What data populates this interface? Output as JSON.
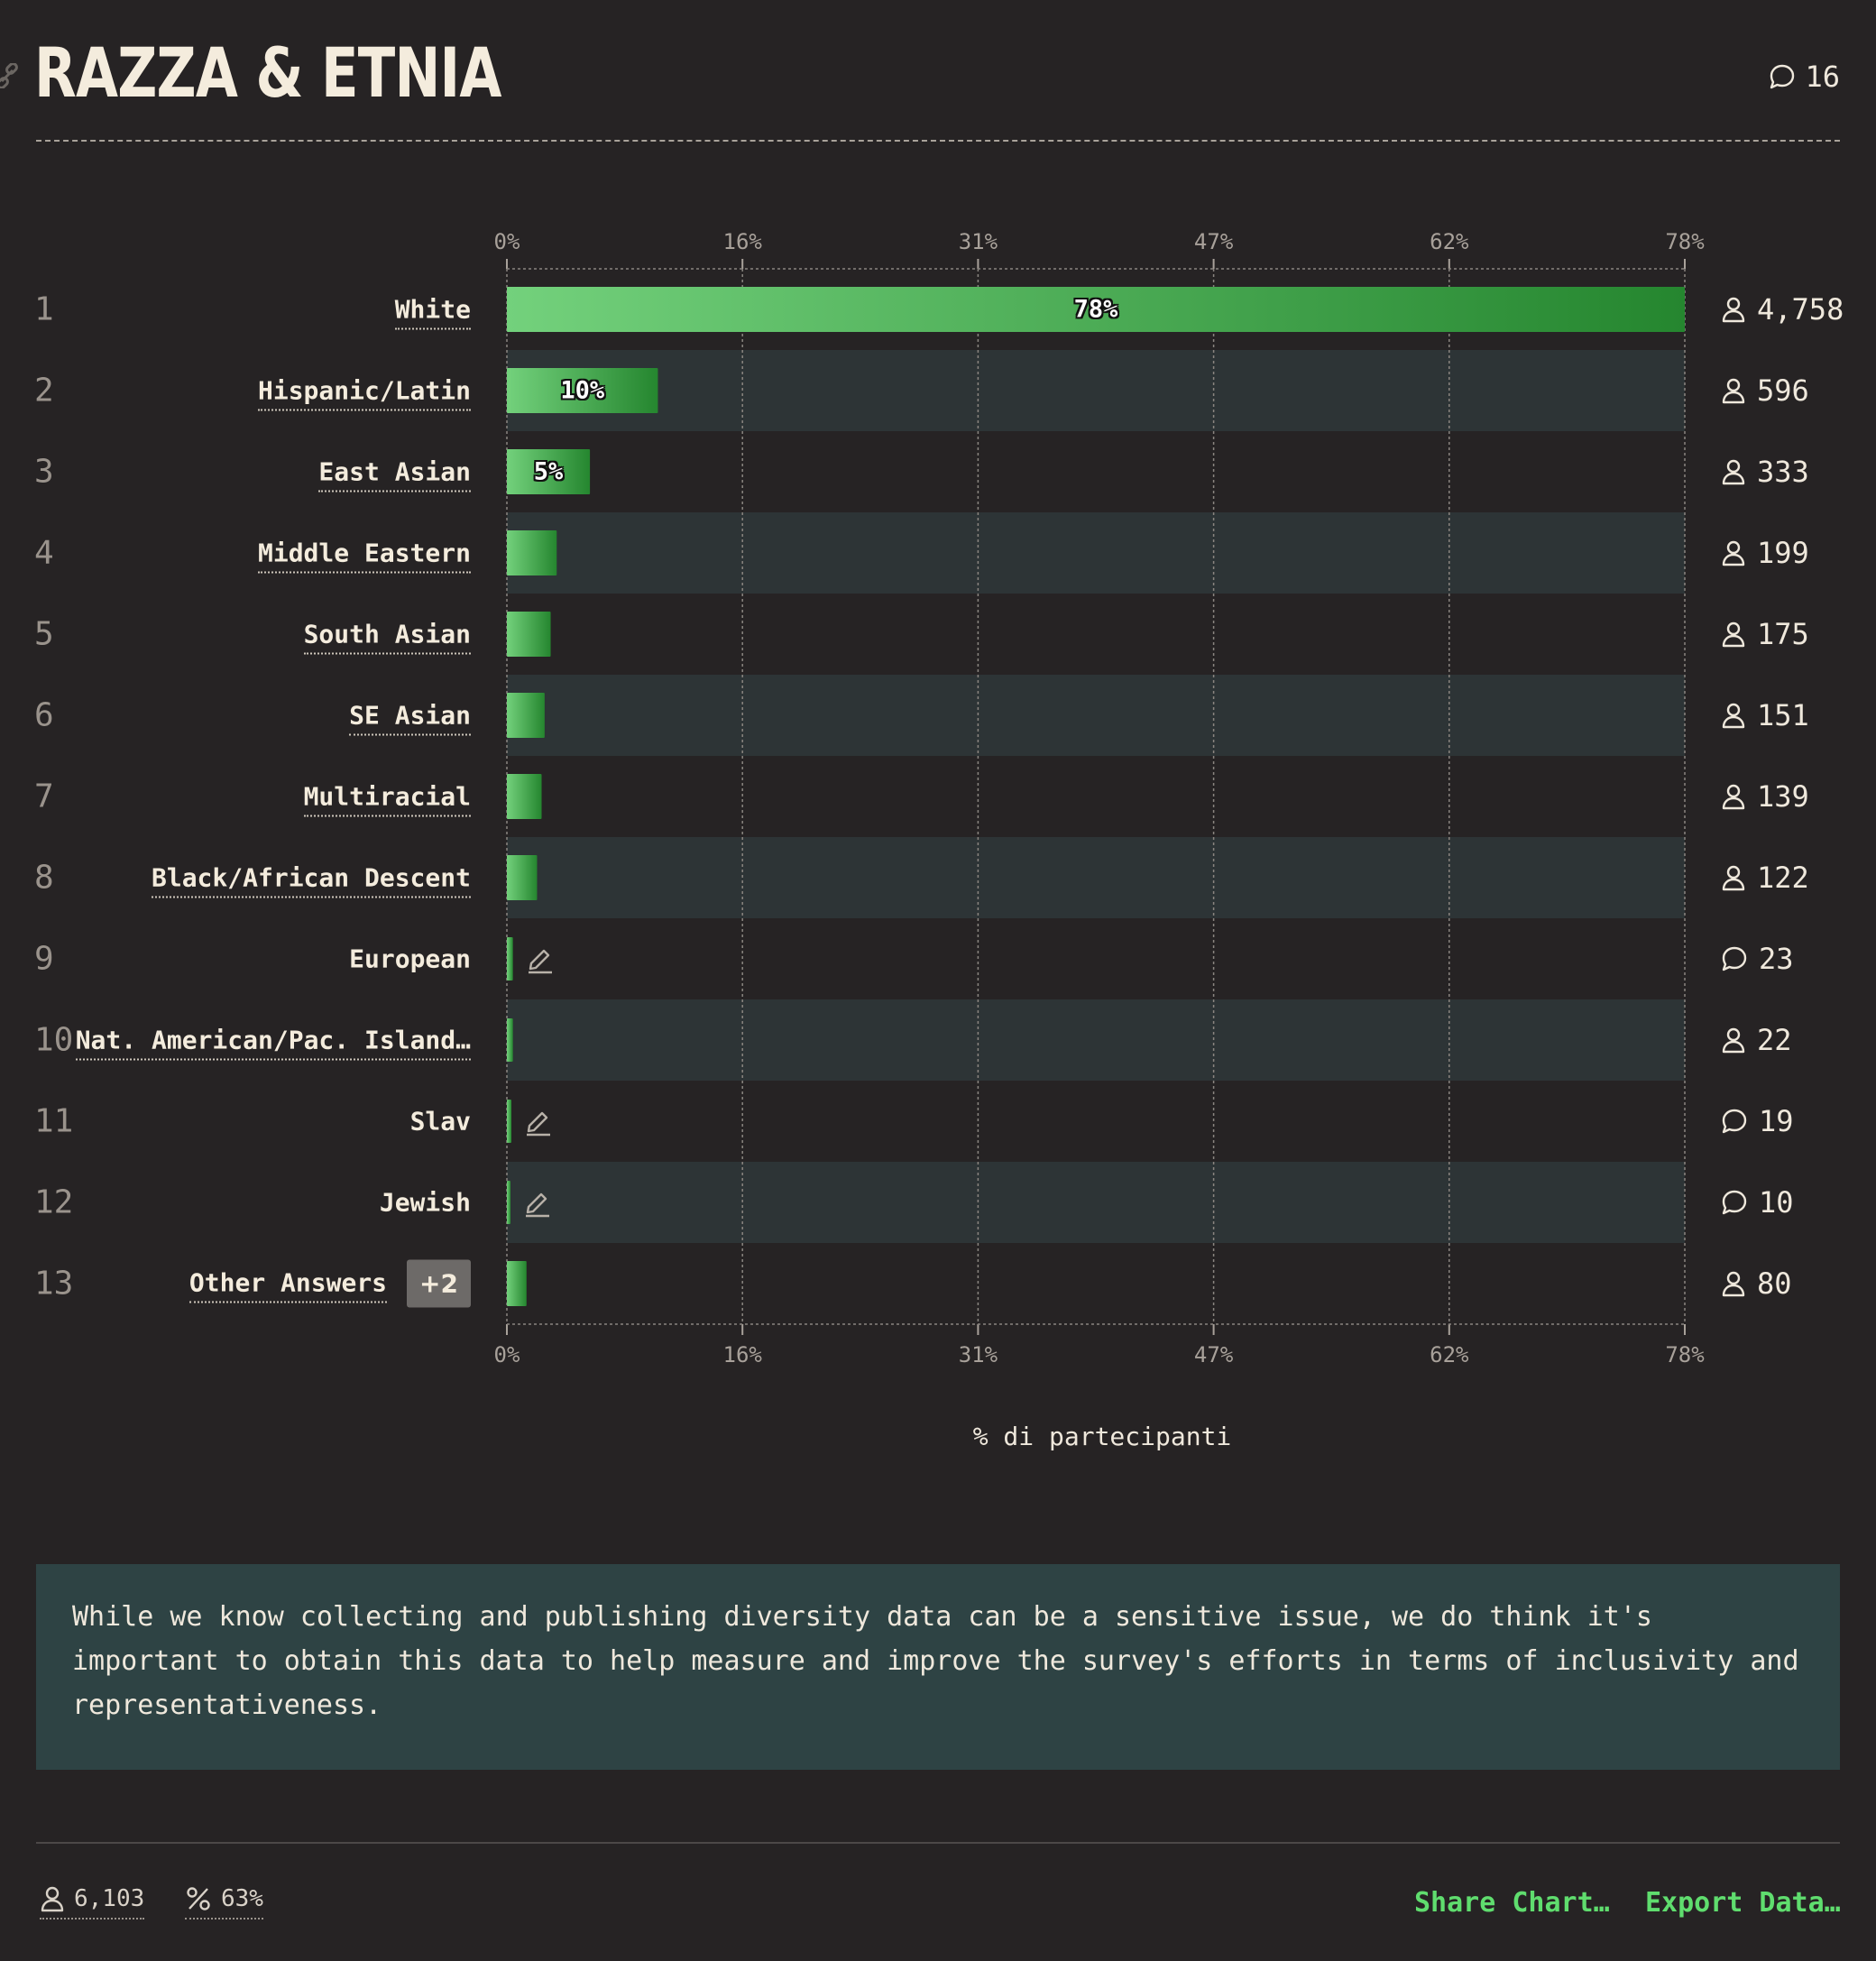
{
  "header": {
    "title": "RAZZA & ETNIA",
    "comment_count": "16"
  },
  "colors": {
    "background": "#262324",
    "band": "#2d3436",
    "bar_light": "#73d17c",
    "bar_dark": "#25862f",
    "accent_link": "#5fdd6e",
    "note_bg": "#2e4344"
  },
  "chart_data": {
    "type": "bar",
    "orientation": "horizontal",
    "xlabel": "% di partecipanti",
    "xlim": [
      0,
      78
    ],
    "x_ticks": [
      "0%",
      "16%",
      "31%",
      "47%",
      "62%",
      "78%"
    ],
    "grid": true,
    "rows": [
      {
        "rank": "1",
        "label": "White",
        "value": 78,
        "count": "4,758",
        "count_icon": "person-icon",
        "pct_label": "78%",
        "dotted": true,
        "pencil": false
      },
      {
        "rank": "2",
        "label": "Hispanic/Latin",
        "value": 10,
        "count": "596",
        "count_icon": "person-icon",
        "pct_label": "10%",
        "dotted": true,
        "pencil": false
      },
      {
        "rank": "3",
        "label": "East Asian",
        "value": 5.5,
        "count": "333",
        "count_icon": "person-icon",
        "pct_label": "5%",
        "dotted": true,
        "pencil": false
      },
      {
        "rank": "4",
        "label": "Middle Eastern",
        "value": 3.3,
        "count": "199",
        "count_icon": "person-icon",
        "pct_label": "",
        "dotted": true,
        "pencil": false
      },
      {
        "rank": "5",
        "label": "South Asian",
        "value": 2.9,
        "count": "175",
        "count_icon": "person-icon",
        "pct_label": "",
        "dotted": true,
        "pencil": false
      },
      {
        "rank": "6",
        "label": "SE Asian",
        "value": 2.5,
        "count": "151",
        "count_icon": "person-icon",
        "pct_label": "",
        "dotted": true,
        "pencil": false
      },
      {
        "rank": "7",
        "label": "Multiracial",
        "value": 2.3,
        "count": "139",
        "count_icon": "person-icon",
        "pct_label": "",
        "dotted": true,
        "pencil": false
      },
      {
        "rank": "8",
        "label": "Black/African Descent",
        "value": 2.0,
        "count": "122",
        "count_icon": "person-icon",
        "pct_label": "",
        "dotted": true,
        "pencil": false
      },
      {
        "rank": "9",
        "label": "European",
        "value": 0.4,
        "count": "23",
        "count_icon": "comment-icon",
        "pct_label": "",
        "dotted": false,
        "pencil": true
      },
      {
        "rank": "10",
        "label": "Nat. American/Pac. Island…",
        "value": 0.4,
        "count": "22",
        "count_icon": "person-icon",
        "pct_label": "",
        "dotted": true,
        "pencil": false
      },
      {
        "rank": "11",
        "label": "Slav",
        "value": 0.3,
        "count": "19",
        "count_icon": "comment-icon",
        "pct_label": "",
        "dotted": false,
        "pencil": true
      },
      {
        "rank": "12",
        "label": "Jewish",
        "value": 0.2,
        "count": "10",
        "count_icon": "comment-icon",
        "pct_label": "",
        "dotted": false,
        "pencil": true
      },
      {
        "rank": "13",
        "label": "Other Answers",
        "value": 1.3,
        "count": "80",
        "count_icon": "person-icon",
        "pct_label": "",
        "dotted": true,
        "pencil": false,
        "badge": "+2"
      }
    ]
  },
  "note": {
    "text": "While we know collecting and publishing diversity data can be a sensitive issue, we do think it's important to obtain this data to help measure and improve the survey's efforts in terms of inclusivity and representativeness."
  },
  "footer": {
    "respondents": "6,103",
    "percent": "63%",
    "share_label": "Share Chart…",
    "export_label": "Export Data…"
  }
}
